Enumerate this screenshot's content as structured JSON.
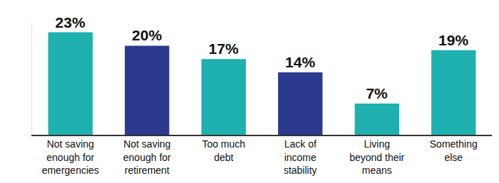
{
  "chart_data": {
    "type": "bar",
    "categories": [
      "Not saving enough for emergencies",
      "Not saving enough for retirement",
      "Too much debt",
      "Lack of income stability",
      "Living beyond their means",
      "Something else"
    ],
    "values": [
      23,
      20,
      17,
      14,
      7,
      19
    ],
    "value_labels": [
      "23%",
      "20%",
      "17%",
      "14%",
      "7%",
      "19%"
    ],
    "colors": [
      "#1fb0b0",
      "#2b3a8e",
      "#1fb0b0",
      "#2b3a8e",
      "#1fb0b0",
      "#1fb0b0"
    ],
    "ylim": [
      0,
      25
    ],
    "data_labels": true,
    "tick_labels": "x",
    "grid": false
  }
}
